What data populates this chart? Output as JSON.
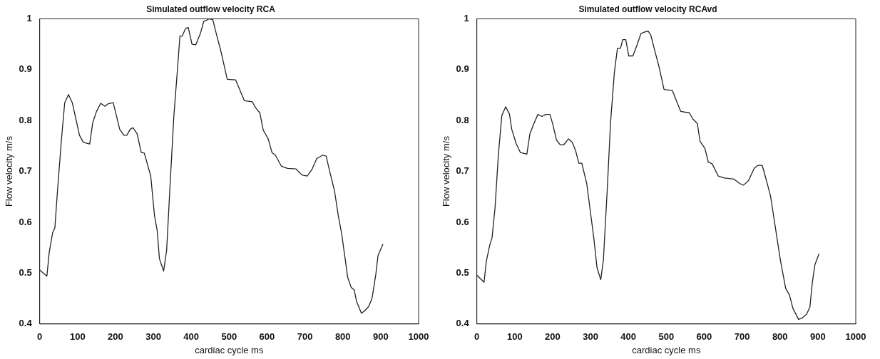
{
  "chart_data": [
    {
      "type": "line",
      "title": "Simulated outflow velocity RCA",
      "xlabel": "cardiac cycle ms",
      "ylabel": "Flow velocity m/s",
      "xlim": [
        0,
        1000
      ],
      "xticks": [
        0,
        100,
        200,
        300,
        400,
        500,
        600,
        700,
        800,
        900,
        1000
      ],
      "ylim": [
        0.4,
        1
      ],
      "yticks": [
        {
          "value": 0.4,
          "label": "0.4"
        },
        {
          "value": 0.5,
          "label": "0.5"
        },
        {
          "value": 0.6,
          "label": "0.6"
        },
        {
          "value": 0.7,
          "label": "0.7"
        },
        {
          "value": 0.8,
          "label": "0.8"
        },
        {
          "value": 0.9,
          "label": "0.9"
        },
        {
          "value": 1,
          "label": "1"
        }
      ],
      "legend": false,
      "grid": false,
      "marker": "none",
      "line_style": "solid",
      "x": [
        0,
        19,
        25,
        34,
        40,
        47,
        57,
        66,
        76,
        86,
        94,
        105,
        115,
        132,
        140,
        150,
        161,
        172,
        181,
        194,
        201,
        211,
        222,
        230,
        239,
        246,
        257,
        268,
        276,
        293,
        303,
        310,
        316,
        327,
        335,
        345,
        354,
        364,
        370,
        376,
        385,
        392,
        402,
        412,
        424,
        433,
        440,
        447,
        457,
        466,
        479,
        495,
        517,
        526,
        540,
        561,
        570,
        581,
        590,
        603,
        613,
        622,
        638,
        654,
        676,
        692,
        706,
        718,
        731,
        747,
        756,
        765,
        778,
        788,
        797,
        813,
        822,
        830,
        836,
        849,
        858,
        868,
        877,
        887,
        893,
        906
      ],
      "series": [
        {
          "color": "#222222",
          "values": [
            0.506,
            0.494,
            0.54,
            0.579,
            0.589,
            0.662,
            0.759,
            0.835,
            0.851,
            0.835,
            0.808,
            0.771,
            0.757,
            0.754,
            0.796,
            0.818,
            0.834,
            0.828,
            0.833,
            0.835,
            0.814,
            0.783,
            0.771,
            0.771,
            0.783,
            0.786,
            0.774,
            0.737,
            0.736,
            0.691,
            0.613,
            0.584,
            0.528,
            0.504,
            0.545,
            0.686,
            0.808,
            0.905,
            0.966,
            0.966,
            0.981,
            0.983,
            0.95,
            0.949,
            0.971,
            0.995,
            0.997,
            1.0,
            0.998,
            0.971,
            0.934,
            0.881,
            0.88,
            0.864,
            0.839,
            0.837,
            0.825,
            0.815,
            0.781,
            0.764,
            0.737,
            0.732,
            0.71,
            0.706,
            0.705,
            0.693,
            0.691,
            0.703,
            0.725,
            0.732,
            0.73,
            0.701,
            0.662,
            0.613,
            0.577,
            0.491,
            0.472,
            0.467,
            0.445,
            0.421,
            0.426,
            0.434,
            0.45,
            0.497,
            0.535,
            0.557
          ]
        }
      ]
    },
    {
      "type": "line",
      "title": "Simulated outflow velocity RCAvd",
      "xlabel": "cardiac cycle ms",
      "ylabel": "Flow velocity m/s",
      "xlim": [
        0,
        1000
      ],
      "xticks": [
        0,
        100,
        200,
        300,
        400,
        500,
        600,
        700,
        800,
        900,
        1000
      ],
      "ylim": [
        0.4,
        1
      ],
      "yticks": [
        {
          "value": 0.4,
          "label": "0.4"
        },
        {
          "value": 0.5,
          "label": "0.5"
        },
        {
          "value": 0.6,
          "label": "0.6"
        },
        {
          "value": 0.7,
          "label": "0.7"
        },
        {
          "value": 0.8,
          "label": "0.8"
        },
        {
          "value": 0.9,
          "label": "0.9"
        },
        {
          "value": 1,
          "label": "1"
        }
      ],
      "legend": false,
      "grid": false,
      "marker": "none",
      "line_style": "solid",
      "x": [
        0,
        19,
        25,
        34,
        40,
        48,
        57,
        66,
        76,
        86,
        92,
        104,
        115,
        132,
        140,
        150,
        161,
        172,
        182,
        193,
        201,
        210,
        220,
        229,
        242,
        252,
        261,
        269,
        277,
        290,
        301,
        309,
        317,
        327,
        334,
        344,
        353,
        363,
        371,
        379,
        385,
        393,
        401,
        412,
        423,
        433,
        443,
        452,
        459,
        468,
        481,
        494,
        516,
        525,
        538,
        561,
        570,
        582,
        589,
        602,
        611,
        621,
        637,
        653,
        678,
        694,
        704,
        717,
        732,
        742,
        753,
        761,
        775,
        787,
        801,
        815,
        825,
        834,
        849,
        857,
        870,
        879,
        885,
        892,
        903
      ],
      "series": [
        {
          "color": "#222222",
          "values": [
            0.496,
            0.482,
            0.523,
            0.555,
            0.569,
            0.628,
            0.735,
            0.81,
            0.827,
            0.813,
            0.783,
            0.754,
            0.737,
            0.734,
            0.774,
            0.793,
            0.812,
            0.808,
            0.812,
            0.812,
            0.791,
            0.762,
            0.752,
            0.752,
            0.764,
            0.757,
            0.74,
            0.716,
            0.716,
            0.676,
            0.613,
            0.567,
            0.511,
            0.487,
            0.526,
            0.662,
            0.798,
            0.895,
            0.942,
            0.942,
            0.959,
            0.959,
            0.927,
            0.927,
            0.949,
            0.971,
            0.974,
            0.976,
            0.968,
            0.942,
            0.905,
            0.861,
            0.859,
            0.842,
            0.818,
            0.815,
            0.803,
            0.794,
            0.759,
            0.745,
            0.718,
            0.715,
            0.691,
            0.687,
            0.685,
            0.676,
            0.673,
            0.682,
            0.706,
            0.712,
            0.712,
            0.691,
            0.652,
            0.594,
            0.526,
            0.47,
            0.457,
            0.431,
            0.409,
            0.411,
            0.419,
            0.433,
            0.479,
            0.516,
            0.538
          ]
        }
      ]
    }
  ]
}
